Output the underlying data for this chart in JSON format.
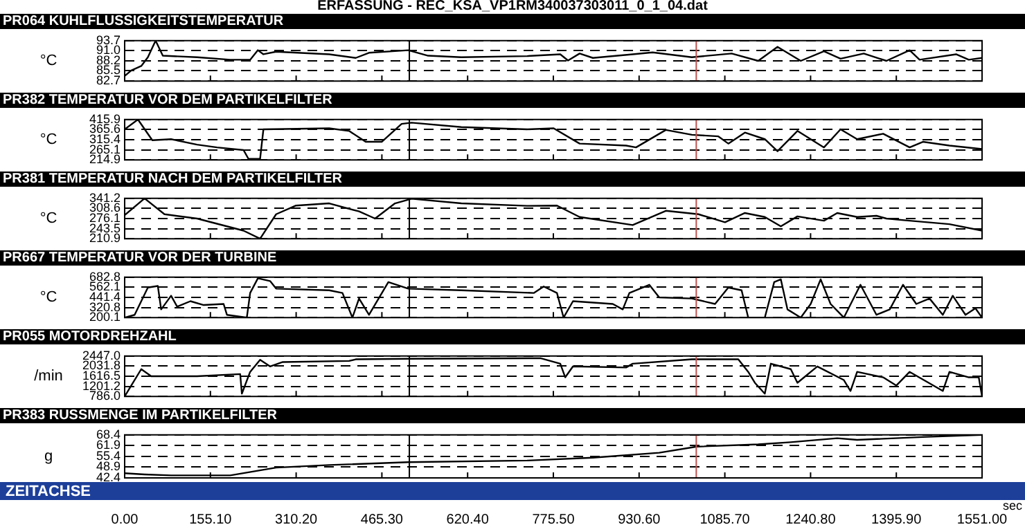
{
  "chart_data": [
    {
      "type": "line",
      "title": "PR064 KUHLFLUSSIGKEITSTEMPERATUR",
      "ylabel": "°C",
      "annotations": [
        "ERFASSUNG - REC_KSA_VP1RM340037303011_0_1_04.dat"
      ],
      "color": "#000000",
      "marker": "none",
      "line_style": "solid",
      "grid": "y",
      "legend": false,
      "tick_labels": "y",
      "x": [
        0,
        12,
        30,
        42,
        56,
        69,
        131,
        191,
        227,
        241,
        251,
        274,
        370,
        418,
        442,
        513,
        549,
        609,
        728,
        788,
        802,
        823,
        847,
        919,
        955,
        1026,
        1098,
        1146,
        1181,
        1223,
        1265,
        1295,
        1337,
        1378,
        1420,
        1438,
        1504,
        1527,
        1551
      ],
      "values": [
        84.1,
        85.6,
        86.8,
        89.2,
        93.7,
        89.6,
        89.2,
        88.5,
        88.5,
        91.1,
        90,
        90.7,
        90,
        89,
        90.4,
        91.1,
        89.6,
        89.2,
        89.5,
        90,
        88.3,
        90.2,
        89,
        90,
        90.5,
        89.2,
        90.2,
        88.2,
        92,
        88.2,
        90.8,
        88.8,
        90.2,
        88.2,
        91.1,
        88.5,
        90,
        88.5,
        89
      ],
      "xlim": [
        0,
        1551
      ],
      "xticks": [
        {
          "value": 0,
          "label": null
        },
        {
          "value": 155.1,
          "label": null
        },
        {
          "value": 310.2,
          "label": null
        },
        {
          "value": 465.3,
          "label": null
        },
        {
          "value": 620.4,
          "label": null
        },
        {
          "value": 775.5,
          "label": null
        },
        {
          "value": 930.6,
          "label": null
        },
        {
          "value": 1085.7,
          "label": null
        },
        {
          "value": 1240.8,
          "label": null
        },
        {
          "value": 1395.9,
          "label": null
        },
        {
          "value": 1551,
          "label": null
        }
      ],
      "ylim": [
        82.7,
        93.7
      ],
      "yticks": [
        82.7,
        85.5,
        88.2,
        {
          "value": 91,
          "label": "91.0"
        },
        93.7
      ],
      "ref_lines": [
        {
          "axis": "x",
          "value": 515,
          "color": "#000000"
        },
        {
          "axis": "x",
          "value": 1034,
          "color": "#c0504d"
        }
      ]
    },
    {
      "type": "line",
      "title": "PR382 TEMPERATUR VOR DEM PARTIKELFILTER",
      "ylabel": "°C",
      "color": "#000000",
      "marker": "none",
      "line_style": "solid",
      "grid": "y",
      "legend": false,
      "tick_labels": "y",
      "x": [
        0,
        24,
        50,
        84,
        131,
        167,
        215,
        224,
        245,
        251,
        370,
        406,
        436,
        465,
        501,
        519,
        609,
        728,
        776,
        823,
        907,
        925,
        979,
        1026,
        1074,
        1092,
        1122,
        1158,
        1181,
        1217,
        1265,
        1295,
        1325,
        1372,
        1420,
        1444,
        1492,
        1551
      ],
      "values": [
        367,
        415.9,
        313,
        318,
        291,
        277,
        264,
        220,
        220,
        367,
        372,
        359,
        305,
        305,
        394,
        400,
        378,
        367,
        372,
        296,
        286,
        277,
        364,
        340,
        332,
        296,
        351,
        318,
        258,
        359,
        277,
        367,
        318,
        345,
        277,
        305,
        286,
        269
      ],
      "xlim": [
        0,
        1551
      ],
      "xticks": [
        {
          "value": 0,
          "label": null
        },
        {
          "value": 155.1,
          "label": null
        },
        {
          "value": 310.2,
          "label": null
        },
        {
          "value": 465.3,
          "label": null
        },
        {
          "value": 620.4,
          "label": null
        },
        {
          "value": 775.5,
          "label": null
        },
        {
          "value": 930.6,
          "label": null
        },
        {
          "value": 1085.7,
          "label": null
        },
        {
          "value": 1240.8,
          "label": null
        },
        {
          "value": 1395.9,
          "label": null
        },
        {
          "value": 1551,
          "label": null
        }
      ],
      "ylim": [
        214.9,
        415.9
      ],
      "yticks": [
        214.9,
        265.1,
        315.4,
        365.6,
        415.9
      ],
      "ref_lines": [
        {
          "axis": "x",
          "value": 515,
          "color": "#000000"
        },
        {
          "axis": "x",
          "value": 1034,
          "color": "#c0504d"
        }
      ]
    },
    {
      "type": "line",
      "title": "PR381 TEMPERATUR NACH DEM PARTIKELFILTER",
      "ylabel": "°C",
      "color": "#000000",
      "marker": "none",
      "line_style": "solid",
      "grid": "y",
      "legend": false,
      "tick_labels": "y",
      "x": [
        0,
        36,
        72,
        131,
        215,
        245,
        274,
        310,
        370,
        424,
        453,
        489,
        519,
        609,
        728,
        782,
        823,
        919,
        979,
        1038,
        1086,
        1122,
        1158,
        1187,
        1217,
        1265,
        1289,
        1325,
        1360,
        1378,
        1420,
        1492,
        1551
      ],
      "values": [
        287,
        341,
        290,
        276,
        237,
        211,
        290,
        318,
        325,
        299,
        276,
        325,
        340,
        325,
        317,
        318,
        281,
        255,
        301,
        290,
        264,
        294,
        281,
        251,
        283,
        269,
        294,
        281,
        285,
        276,
        269,
        258,
        237
      ],
      "xlim": [
        0,
        1551
      ],
      "xticks": [
        {
          "value": 0,
          "label": null
        },
        {
          "value": 155.1,
          "label": null
        },
        {
          "value": 310.2,
          "label": null
        },
        {
          "value": 465.3,
          "label": null
        },
        {
          "value": 620.4,
          "label": null
        },
        {
          "value": 775.5,
          "label": null
        },
        {
          "value": 930.6,
          "label": null
        },
        {
          "value": 1085.7,
          "label": null
        },
        {
          "value": 1240.8,
          "label": null
        },
        {
          "value": 1395.9,
          "label": null
        },
        {
          "value": 1551,
          "label": null
        }
      ],
      "ylim": [
        210.9,
        341.2
      ],
      "yticks": [
        210.9,
        243.5,
        276.1,
        308.6,
        341.2
      ],
      "ref_lines": [
        {
          "axis": "x",
          "value": 515,
          "color": "#000000"
        },
        {
          "axis": "x",
          "value": 1034,
          "color": "#c0504d"
        }
      ]
    },
    {
      "type": "line",
      "title": "PR667 TEMPERATUR VOR DER TURBINE",
      "ylabel": "°C",
      "color": "#000000",
      "marker": "none",
      "line_style": "solid",
      "grid": "y",
      "legend": false,
      "tick_labels": "y",
      "x": [
        0,
        18,
        42,
        60,
        66,
        84,
        95,
        119,
        143,
        179,
        185,
        221,
        227,
        241,
        263,
        274,
        370,
        394,
        412,
        424,
        442,
        477,
        513,
        609,
        740,
        758,
        782,
        794,
        811,
        883,
        901,
        913,
        949,
        967,
        1026,
        1068,
        1092,
        1116,
        1128,
        1158,
        1175,
        1187,
        1199,
        1223,
        1241,
        1259,
        1277,
        1301,
        1331,
        1360,
        1384,
        1408,
        1432,
        1456,
        1480,
        1498,
        1521,
        1539,
        1551
      ],
      "values": [
        200.1,
        233,
        559,
        578,
        298,
        461,
        331,
        396,
        350,
        363,
        233,
        200.1,
        494,
        670,
        637,
        546,
        526,
        494,
        200.1,
        428,
        233,
        624,
        546,
        526,
        494,
        572,
        494,
        200.1,
        396,
        363,
        298,
        494,
        592,
        441,
        428,
        363,
        559,
        526,
        200.1,
        200.1,
        624,
        657,
        298,
        200.1,
        363,
        657,
        363,
        200.1,
        592,
        233,
        298,
        592,
        363,
        428,
        233,
        461,
        233,
        311,
        200.1
      ],
      "xlim": [
        0,
        1551
      ],
      "xticks": [
        {
          "value": 0,
          "label": null
        },
        {
          "value": 155.1,
          "label": null
        },
        {
          "value": 310.2,
          "label": null
        },
        {
          "value": 465.3,
          "label": null
        },
        {
          "value": 620.4,
          "label": null
        },
        {
          "value": 775.5,
          "label": null
        },
        {
          "value": 930.6,
          "label": null
        },
        {
          "value": 1085.7,
          "label": null
        },
        {
          "value": 1240.8,
          "label": null
        },
        {
          "value": 1395.9,
          "label": null
        },
        {
          "value": 1551,
          "label": null
        }
      ],
      "ylim": [
        200.1,
        682.8
      ],
      "yticks": [
        200.1,
        320.8,
        441.4,
        562.1,
        682.8
      ],
      "ref_lines": [
        {
          "axis": "x",
          "value": 515,
          "color": "#000000"
        },
        {
          "axis": "x",
          "value": 1034,
          "color": "#c0504d"
        }
      ]
    },
    {
      "type": "line",
      "title": "PR055 MOTORDREHZAHL",
      "ylabel": "/min",
      "color": "#000000",
      "marker": "none",
      "line_style": "solid",
      "grid": "y",
      "legend": false,
      "tick_labels": "y",
      "x": [
        0,
        12,
        30,
        48,
        131,
        209,
        212,
        227,
        245,
        263,
        286,
        406,
        418,
        513,
        752,
        788,
        797,
        811,
        907,
        919,
        1026,
        1110,
        1128,
        1140,
        1158,
        1169,
        1205,
        1217,
        1253,
        1301,
        1313,
        1325,
        1372,
        1396,
        1420,
        1480,
        1492,
        1527,
        1545,
        1551
      ],
      "values": [
        786,
        1235,
        1908,
        1616,
        1616,
        1706,
        898,
        1796,
        2290,
        2020,
        2200,
        2245,
        2312,
        2335,
        2357,
        2133,
        1572,
        2020,
        1975,
        2133,
        2312,
        2312,
        1796,
        1347,
        898,
        2133,
        1908,
        1347,
        2020,
        1459,
        1010,
        1796,
        1572,
        1235,
        1796,
        1010,
        1796,
        1572,
        1572,
        786
      ],
      "xlim": [
        0,
        1551
      ],
      "xticks": [
        {
          "value": 0,
          "label": null
        },
        {
          "value": 155.1,
          "label": null
        },
        {
          "value": 310.2,
          "label": null
        },
        {
          "value": 465.3,
          "label": null
        },
        {
          "value": 620.4,
          "label": null
        },
        {
          "value": 775.5,
          "label": null
        },
        {
          "value": 930.6,
          "label": null
        },
        {
          "value": 1085.7,
          "label": null
        },
        {
          "value": 1240.8,
          "label": null
        },
        {
          "value": 1395.9,
          "label": null
        },
        {
          "value": 1551,
          "label": null
        }
      ],
      "ylim": [
        786,
        2447
      ],
      "yticks": [
        {
          "value": 786,
          "label": "786.0"
        },
        1201.2,
        1616.5,
        2031.8,
        {
          "value": 2447,
          "label": "2447.0"
        }
      ],
      "ref_lines": [
        {
          "axis": "x",
          "value": 515,
          "color": "#000000"
        },
        {
          "axis": "x",
          "value": 1034,
          "color": "#c0504d"
        }
      ]
    },
    {
      "type": "line",
      "title": "PR383 RUSSMENGE IM PARTIKELFILTER",
      "ylabel": "g",
      "xlabel": "sec",
      "annotations": [
        "ZEITACHSE"
      ],
      "color": "#000000",
      "marker": "none",
      "line_style": "solid",
      "grid": "y",
      "legend": false,
      "x": [
        0,
        36,
        84,
        191,
        274,
        370,
        513,
        728,
        847,
        967,
        1035,
        1146,
        1205,
        1289,
        1325,
        1444,
        1551
      ],
      "values": [
        45.2,
        44.5,
        43.9,
        43.9,
        48.6,
        50.2,
        51.9,
        52.9,
        54.6,
        57.6,
        61.3,
        62.7,
        64.0,
        66.4,
        65.4,
        67.1,
        68.4
      ],
      "xlim": [
        0,
        1551
      ],
      "xticks": [
        {
          "value": 0,
          "label": "0.00"
        },
        {
          "value": 155.1,
          "label": "155.10"
        },
        {
          "value": 310.2,
          "label": "310.20"
        },
        {
          "value": 465.3,
          "label": "465.30"
        },
        {
          "value": 620.4,
          "label": "620.40"
        },
        {
          "value": 775.5,
          "label": "775.50"
        },
        {
          "value": 930.6,
          "label": "930.60"
        },
        {
          "value": 1085.7,
          "label": "1085.70"
        },
        {
          "value": 1240.8,
          "label": "1240.80"
        },
        {
          "value": 1395.9,
          "label": "1395.90"
        },
        {
          "value": 1551,
          "label": "1551.00"
        }
      ],
      "ylim": [
        42.4,
        68.4
      ],
      "yticks": [
        42.4,
        48.9,
        55.4,
        61.9,
        68.4
      ],
      "ref_lines": [
        {
          "axis": "x",
          "value": 515,
          "color": "#000000"
        },
        {
          "axis": "x",
          "value": 1034,
          "color": "#c0504d"
        }
      ]
    }
  ]
}
